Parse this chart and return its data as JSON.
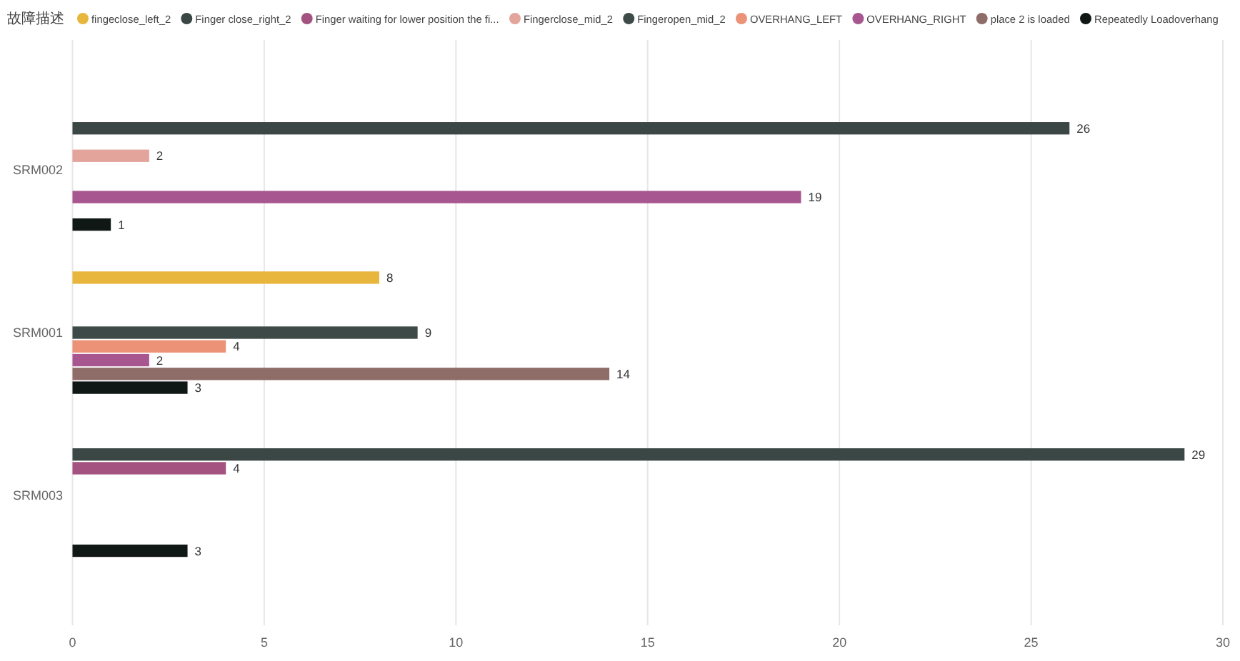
{
  "chart_data": {
    "type": "bar",
    "orientation": "horizontal",
    "legend_title": "故障描述",
    "legend": "top",
    "grid": "x",
    "data_labels": true,
    "categories": [
      "SRM002",
      "SRM001",
      "SRM003"
    ],
    "series": [
      {
        "name": "fingeclose_left_2",
        "color": "#e8b63c",
        "values": [
          null,
          8,
          null
        ]
      },
      {
        "name": "Finger close_right_2",
        "color": "#3b4744",
        "values": [
          26,
          null,
          29
        ]
      },
      {
        "name": "Finger waiting for lower position the fi...",
        "color": "#a4527f",
        "values": [
          null,
          null,
          4
        ]
      },
      {
        "name": "Fingerclose_mid_2",
        "color": "#e3a49c",
        "values": [
          2,
          null,
          null
        ]
      },
      {
        "name": "Fingeropen_mid_2",
        "color": "#3e4a47",
        "values": [
          null,
          9,
          null
        ]
      },
      {
        "name": "OVERHANG_LEFT",
        "color": "#ec9277",
        "values": [
          null,
          4,
          null
        ]
      },
      {
        "name": "OVERHANG_RIGHT",
        "color": "#a8568f",
        "values": [
          19,
          2,
          null
        ]
      },
      {
        "name": "place 2 is loaded",
        "color": "#8e6c68",
        "values": [
          null,
          14,
          null
        ]
      },
      {
        "name": "Repeatedly Loadoverhang",
        "color": "#101816",
        "values": [
          1,
          3,
          3
        ]
      }
    ],
    "xlim": [
      0,
      30
    ],
    "xticks": [
      0,
      5,
      10,
      15,
      20,
      25,
      30
    ]
  }
}
